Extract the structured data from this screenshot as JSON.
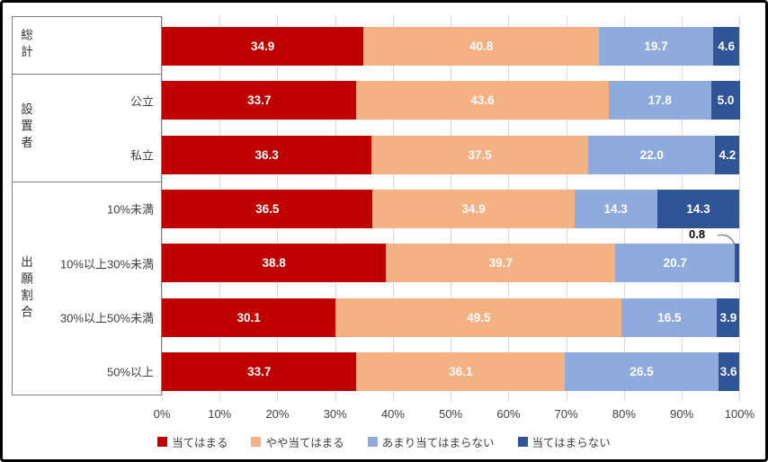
{
  "chart_data": {
    "type": "bar",
    "orientation": "horizontal-stacked",
    "title": "",
    "xlabel": "",
    "ylabel": "",
    "xlim": [
      0,
      100
    ],
    "grid": "vertical",
    "legend_position": "bottom",
    "x_ticks": [
      "0%",
      "10%",
      "20%",
      "30%",
      "40%",
      "50%",
      "60%",
      "70%",
      "80%",
      "90%",
      "100%"
    ],
    "categories": [
      "総計",
      "公立",
      "私立",
      "10%未満",
      "10%以上30%未満",
      "30%以上50%未満",
      "50%以上"
    ],
    "row_sublabels": [
      "",
      "公立",
      "私立",
      "10%未満",
      "10%以上30%未満",
      "30%以上50%未満",
      "50%以上"
    ],
    "groups": [
      {
        "label": "総計",
        "rows": [
          0
        ]
      },
      {
        "label": "設置者",
        "rows": [
          1,
          2
        ]
      },
      {
        "label": "出願割合",
        "rows": [
          3,
          4,
          5,
          6
        ]
      }
    ],
    "series": [
      {
        "name": "当てはまる",
        "color": "#c00000",
        "values": [
          34.9,
          33.7,
          36.3,
          36.5,
          38.8,
          30.1,
          33.7
        ]
      },
      {
        "name": "やや当てはまる",
        "color": "#f4b183",
        "values": [
          40.8,
          43.6,
          37.5,
          34.9,
          39.7,
          49.5,
          36.1
        ]
      },
      {
        "name": "あまり当てはまらない",
        "color": "#8faadc",
        "values": [
          19.7,
          17.8,
          22.0,
          14.3,
          20.7,
          16.5,
          26.5
        ]
      },
      {
        "name": "当てはまらない",
        "color": "#2f5597",
        "values": [
          4.6,
          5.0,
          4.2,
          14.3,
          0.8,
          3.9,
          3.6
        ]
      }
    ],
    "callout": {
      "text": "0.8",
      "row": 4,
      "series": 3
    },
    "label_color": "#ffffff",
    "gridline_color": "#d9d9d9",
    "panel_border_color": "#808080",
    "axis_text_color": "#404040"
  }
}
